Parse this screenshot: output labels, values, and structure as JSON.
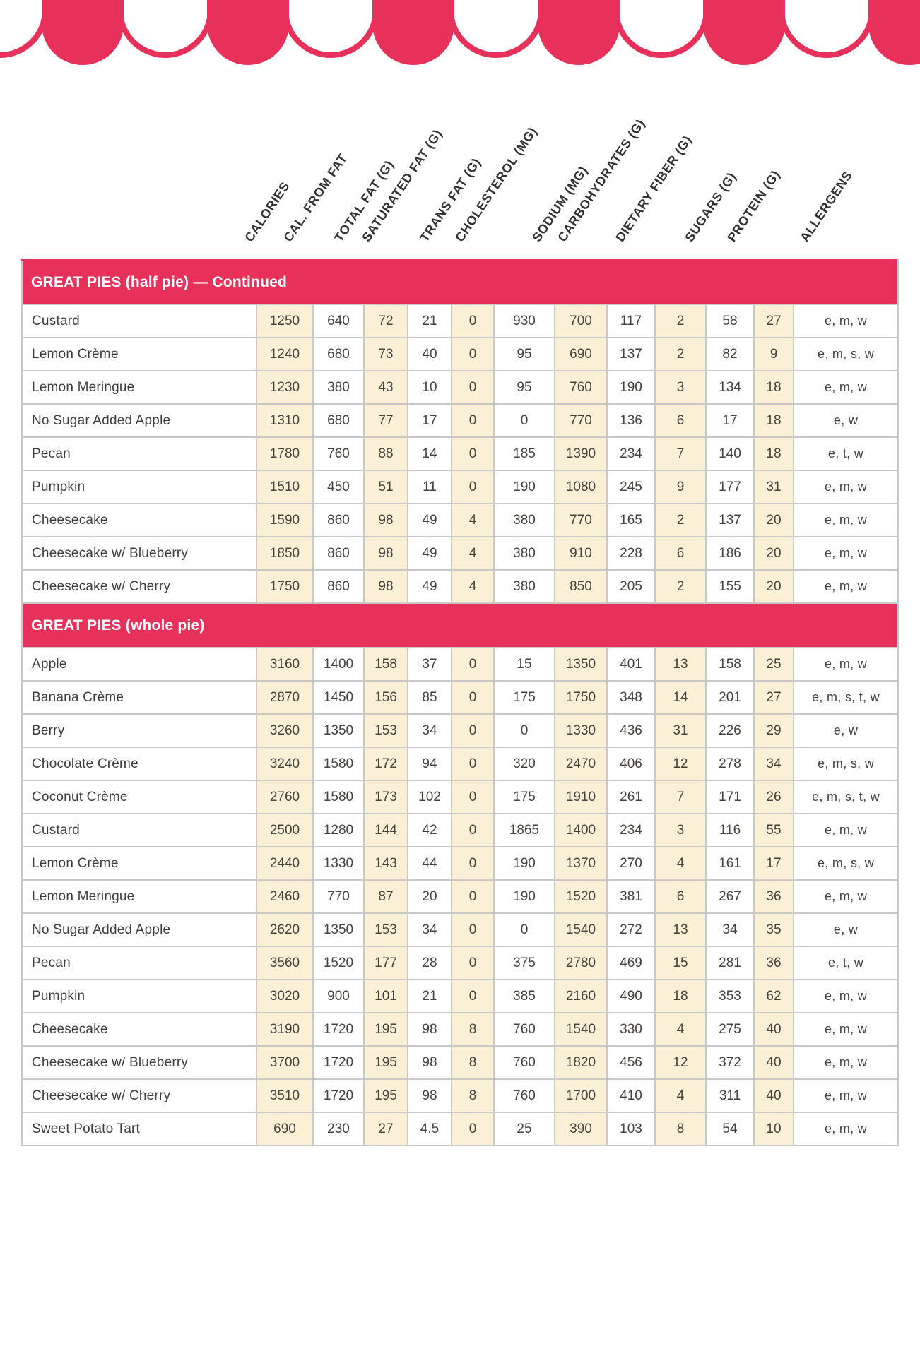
{
  "colors": {
    "accent_pink": "#e8315a",
    "cream_column": "#faf0d6",
    "divider_gray": "#c9c9c9",
    "text_dark": "#46423e"
  },
  "columns": [
    "CALORIES",
    "CAL. FROM FAT",
    "TOTAL FAT (G)",
    "SATURATED FAT (G)",
    "TRANS FAT (G)",
    "CHOLESTEROL (MG)",
    "SODIUM (MG)",
    "CARBOHYDRATES (G)",
    "DIETARY FIBER (G)",
    "SUGARS (G)",
    "PROTEIN (G)",
    "ALLERGENS"
  ],
  "sections": [
    {
      "title": "GREAT PIES (half pie) — Continued",
      "rows": [
        {
          "name": "Custard",
          "values": [
            "1250",
            "640",
            "72",
            "21",
            "0",
            "930",
            "700",
            "117",
            "2",
            "58",
            "27",
            "e, m, w"
          ]
        },
        {
          "name": "Lemon Crème",
          "values": [
            "1240",
            "680",
            "73",
            "40",
            "0",
            "95",
            "690",
            "137",
            "2",
            "82",
            "9",
            "e, m, s, w"
          ]
        },
        {
          "name": "Lemon Meringue",
          "values": [
            "1230",
            "380",
            "43",
            "10",
            "0",
            "95",
            "760",
            "190",
            "3",
            "134",
            "18",
            "e, m, w"
          ]
        },
        {
          "name": "No Sugar Added Apple",
          "values": [
            "1310",
            "680",
            "77",
            "17",
            "0",
            "0",
            "770",
            "136",
            "6",
            "17",
            "18",
            "e, w"
          ]
        },
        {
          "name": "Pecan",
          "values": [
            "1780",
            "760",
            "88",
            "14",
            "0",
            "185",
            "1390",
            "234",
            "7",
            "140",
            "18",
            "e, t, w"
          ]
        },
        {
          "name": "Pumpkin",
          "values": [
            "1510",
            "450",
            "51",
            "11",
            "0",
            "190",
            "1080",
            "245",
            "9",
            "177",
            "31",
            "e, m, w"
          ]
        },
        {
          "name": "Cheesecake",
          "values": [
            "1590",
            "860",
            "98",
            "49",
            "4",
            "380",
            "770",
            "165",
            "2",
            "137",
            "20",
            "e, m, w"
          ]
        },
        {
          "name": "Cheesecake w/ Blueberry",
          "values": [
            "1850",
            "860",
            "98",
            "49",
            "4",
            "380",
            "910",
            "228",
            "6",
            "186",
            "20",
            "e, m, w"
          ]
        },
        {
          "name": "Cheesecake w/ Cherry",
          "values": [
            "1750",
            "860",
            "98",
            "49",
            "4",
            "380",
            "850",
            "205",
            "2",
            "155",
            "20",
            "e, m, w"
          ]
        }
      ]
    },
    {
      "title": "GREAT PIES (whole pie)",
      "rows": [
        {
          "name": "Apple",
          "values": [
            "3160",
            "1400",
            "158",
            "37",
            "0",
            "15",
            "1350",
            "401",
            "13",
            "158",
            "25",
            "e, m, w"
          ]
        },
        {
          "name": "Banana Crème",
          "values": [
            "2870",
            "1450",
            "156",
            "85",
            "0",
            "175",
            "1750",
            "348",
            "14",
            "201",
            "27",
            "e, m, s, t, w"
          ]
        },
        {
          "name": "Berry",
          "values": [
            "3260",
            "1350",
            "153",
            "34",
            "0",
            "0",
            "1330",
            "436",
            "31",
            "226",
            "29",
            "e, w"
          ]
        },
        {
          "name": "Chocolate Crème",
          "values": [
            "3240",
            "1580",
            "172",
            "94",
            "0",
            "320",
            "2470",
            "406",
            "12",
            "278",
            "34",
            "e, m, s, w"
          ]
        },
        {
          "name": "Coconut Crème",
          "values": [
            "2760",
            "1580",
            "173",
            "102",
            "0",
            "175",
            "1910",
            "261",
            "7",
            "171",
            "26",
            "e, m, s, t, w"
          ]
        },
        {
          "name": "Custard",
          "values": [
            "2500",
            "1280",
            "144",
            "42",
            "0",
            "1865",
            "1400",
            "234",
            "3",
            "116",
            "55",
            "e, m, w"
          ]
        },
        {
          "name": "Lemon Crème",
          "values": [
            "2440",
            "1330",
            "143",
            "44",
            "0",
            "190",
            "1370",
            "270",
            "4",
            "161",
            "17",
            "e, m, s, w"
          ]
        },
        {
          "name": "Lemon Meringue",
          "values": [
            "2460",
            "770",
            "87",
            "20",
            "0",
            "190",
            "1520",
            "381",
            "6",
            "267",
            "36",
            "e, m, w"
          ]
        },
        {
          "name": "No Sugar Added Apple",
          "values": [
            "2620",
            "1350",
            "153",
            "34",
            "0",
            "0",
            "1540",
            "272",
            "13",
            "34",
            "35",
            "e, w"
          ]
        },
        {
          "name": "Pecan",
          "values": [
            "3560",
            "1520",
            "177",
            "28",
            "0",
            "375",
            "2780",
            "469",
            "15",
            "281",
            "36",
            "e, t, w"
          ]
        },
        {
          "name": "Pumpkin",
          "values": [
            "3020",
            "900",
            "101",
            "21",
            "0",
            "385",
            "2160",
            "490",
            "18",
            "353",
            "62",
            "e, m, w"
          ]
        },
        {
          "name": "Cheesecake",
          "values": [
            "3190",
            "1720",
            "195",
            "98",
            "8",
            "760",
            "1540",
            "330",
            "4",
            "275",
            "40",
            "e, m, w"
          ]
        },
        {
          "name": "Cheesecake w/ Blueberry",
          "values": [
            "3700",
            "1720",
            "195",
            "98",
            "8",
            "760",
            "1820",
            "456",
            "12",
            "372",
            "40",
            "e, m, w"
          ]
        },
        {
          "name": "Cheesecake w/ Cherry",
          "values": [
            "3510",
            "1720",
            "195",
            "98",
            "8",
            "760",
            "1700",
            "410",
            "4",
            "311",
            "40",
            "e, m, w"
          ]
        },
        {
          "name": "Sweet Potato Tart",
          "values": [
            "690",
            "230",
            "27",
            "4.5",
            "0",
            "25",
            "390",
            "103",
            "8",
            "54",
            "10",
            "e, m, w"
          ]
        }
      ]
    }
  ]
}
